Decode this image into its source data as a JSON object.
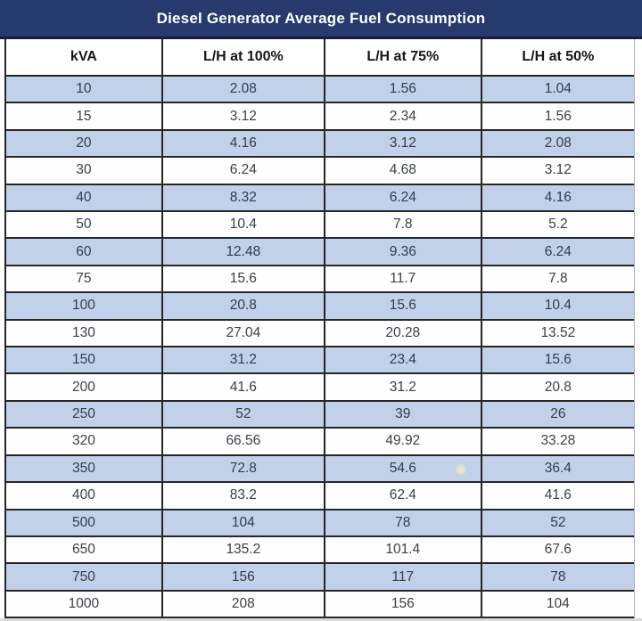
{
  "table": {
    "title": "Diesel Generator Average Fuel Consumption",
    "columns": [
      "kVA",
      "L/H at 100%",
      "L/H at 75%",
      "L/H at 50%"
    ],
    "rows": [
      [
        "10",
        "2.08",
        "1.56",
        "1.04"
      ],
      [
        "15",
        "3.12",
        "2.34",
        "1.56"
      ],
      [
        "20",
        "4.16",
        "3.12",
        "2.08"
      ],
      [
        "30",
        "6.24",
        "4.68",
        "3.12"
      ],
      [
        "40",
        "8.32",
        "6.24",
        "4.16"
      ],
      [
        "50",
        "10.4",
        "7.8",
        "5.2"
      ],
      [
        "60",
        "12.48",
        "9.36",
        "6.24"
      ],
      [
        "75",
        "15.6",
        "11.7",
        "7.8"
      ],
      [
        "100",
        "20.8",
        "15.6",
        "10.4"
      ],
      [
        "130",
        "27.04",
        "20.28",
        "13.52"
      ],
      [
        "150",
        "31.2",
        "23.4",
        "15.6"
      ],
      [
        "200",
        "41.6",
        "31.2",
        "20.8"
      ],
      [
        "250",
        "52",
        "39",
        "26"
      ],
      [
        "320",
        "66.56",
        "49.92",
        "33.28"
      ],
      [
        "350",
        "72.8",
        "54.6",
        "36.4"
      ],
      [
        "400",
        "83.2",
        "62.4",
        "41.6"
      ],
      [
        "500",
        "104",
        "78",
        "52"
      ],
      [
        "650",
        "135.2",
        "101.4",
        "67.6"
      ],
      [
        "750",
        "156",
        "117",
        "78"
      ],
      [
        "1000",
        "208",
        "156",
        "104"
      ]
    ]
  },
  "colors": {
    "title_bg": "#273a6e",
    "title_text": "#ffffff",
    "stripe_row_bg": "#c1d1e9",
    "plain_row_bg": "#ffffff",
    "border": "#262626",
    "data_text": "#3b4149",
    "artifact_dot": "#f1ebc2"
  },
  "chart_data": {
    "type": "table",
    "title": "Diesel Generator Average Fuel Consumption",
    "columns": [
      "kVA",
      "L/H at 100%",
      "L/H at 75%",
      "L/H at 50%"
    ],
    "rows": [
      [
        10,
        2.08,
        1.56,
        1.04
      ],
      [
        15,
        3.12,
        2.34,
        1.56
      ],
      [
        20,
        4.16,
        3.12,
        2.08
      ],
      [
        30,
        6.24,
        4.68,
        3.12
      ],
      [
        40,
        8.32,
        6.24,
        4.16
      ],
      [
        50,
        10.4,
        7.8,
        5.2
      ],
      [
        60,
        12.48,
        9.36,
        6.24
      ],
      [
        75,
        15.6,
        11.7,
        7.8
      ],
      [
        100,
        20.8,
        15.6,
        10.4
      ],
      [
        130,
        27.04,
        20.28,
        13.52
      ],
      [
        150,
        31.2,
        23.4,
        15.6
      ],
      [
        200,
        41.6,
        31.2,
        20.8
      ],
      [
        250,
        52,
        39,
        26
      ],
      [
        320,
        66.56,
        49.92,
        33.28
      ],
      [
        350,
        72.8,
        54.6,
        36.4
      ],
      [
        400,
        83.2,
        62.4,
        41.6
      ],
      [
        500,
        104,
        78,
        52
      ],
      [
        650,
        135.2,
        101.4,
        67.6
      ],
      [
        750,
        156,
        117,
        78
      ],
      [
        1000,
        208,
        156,
        104
      ]
    ],
    "layout": {
      "striped_rows": true,
      "stripe_starts_on_first_data_row": true,
      "header_position": "top"
    }
  }
}
